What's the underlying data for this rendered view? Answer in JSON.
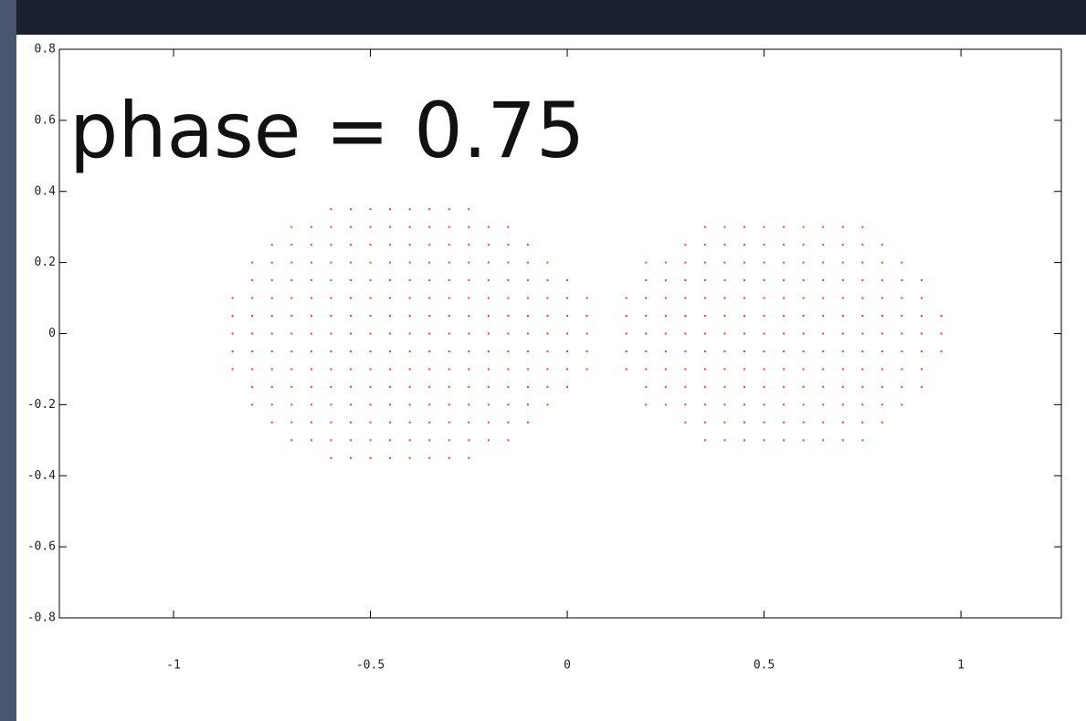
{
  "chart_data": {
    "type": "scatter",
    "annotation": "phase = 0.75",
    "xlim": [
      -1.29,
      1.255
    ],
    "ylim": [
      -0.8,
      0.8
    ],
    "xticks": [
      -1,
      -0.5,
      0,
      0.5,
      1
    ],
    "yticks": [
      -0.8,
      -0.6,
      -0.4,
      -0.2,
      0,
      0.2,
      0.4,
      0.6,
      0.8
    ],
    "series": [
      {
        "color": "#e2452f",
        "x": [
          -0.85,
          -0.85,
          -0.85,
          -0.85,
          -0.85,
          -0.8,
          -0.8,
          -0.8,
          -0.8,
          -0.8,
          -0.8,
          -0.8,
          -0.8,
          -0.8,
          -0.75,
          -0.75,
          -0.75,
          -0.75,
          -0.75,
          -0.75,
          -0.75,
          -0.75,
          -0.75,
          -0.75,
          -0.75,
          -0.7,
          -0.7,
          -0.7,
          -0.7,
          -0.7,
          -0.7,
          -0.7,
          -0.7,
          -0.7,
          -0.7,
          -0.7,
          -0.7,
          -0.7,
          -0.65,
          -0.65,
          -0.65,
          -0.65,
          -0.65,
          -0.65,
          -0.65,
          -0.65,
          -0.65,
          -0.65,
          -0.65,
          -0.65,
          -0.65,
          -0.6,
          -0.6,
          -0.6,
          -0.6,
          -0.6,
          -0.6,
          -0.6,
          -0.6,
          -0.6,
          -0.6,
          -0.6,
          -0.6,
          -0.6,
          -0.6,
          -0.6,
          -0.55,
          -0.55,
          -0.55,
          -0.55,
          -0.55,
          -0.55,
          -0.55,
          -0.55,
          -0.55,
          -0.55,
          -0.55,
          -0.55,
          -0.55,
          -0.55,
          -0.55,
          -0.5,
          -0.5,
          -0.5,
          -0.5,
          -0.5,
          -0.5,
          -0.5,
          -0.5,
          -0.5,
          -0.5,
          -0.5,
          -0.5,
          -0.5,
          -0.5,
          -0.5,
          -0.45,
          -0.45,
          -0.45,
          -0.45,
          -0.45,
          -0.45,
          -0.45,
          -0.45,
          -0.45,
          -0.45,
          -0.45,
          -0.45,
          -0.45,
          -0.45,
          -0.45,
          -0.4,
          -0.4,
          -0.4,
          -0.4,
          -0.4,
          -0.4,
          -0.4,
          -0.4,
          -0.4,
          -0.4,
          -0.4,
          -0.4,
          -0.4,
          -0.4,
          -0.4,
          -0.35,
          -0.35,
          -0.35,
          -0.35,
          -0.35,
          -0.35,
          -0.35,
          -0.35,
          -0.35,
          -0.35,
          -0.35,
          -0.35,
          -0.35,
          -0.35,
          -0.35,
          -0.3,
          -0.3,
          -0.3,
          -0.3,
          -0.3,
          -0.3,
          -0.3,
          -0.3,
          -0.3,
          -0.3,
          -0.3,
          -0.3,
          -0.3,
          -0.3,
          -0.3,
          -0.25,
          -0.25,
          -0.25,
          -0.25,
          -0.25,
          -0.25,
          -0.25,
          -0.25,
          -0.25,
          -0.25,
          -0.25,
          -0.25,
          -0.25,
          -0.25,
          -0.25,
          -0.2,
          -0.2,
          -0.2,
          -0.2,
          -0.2,
          -0.2,
          -0.2,
          -0.2,
          -0.2,
          -0.2,
          -0.2,
          -0.2,
          -0.2,
          -0.15,
          -0.15,
          -0.15,
          -0.15,
          -0.15,
          -0.15,
          -0.15,
          -0.15,
          -0.15,
          -0.15,
          -0.15,
          -0.15,
          -0.15,
          -0.1,
          -0.1,
          -0.1,
          -0.1,
          -0.1,
          -0.1,
          -0.1,
          -0.1,
          -0.1,
          -0.1,
          -0.1,
          -0.05,
          -0.05,
          -0.05,
          -0.05,
          -0.05,
          -0.05,
          -0.05,
          -0.05,
          -0.05,
          0,
          0,
          0,
          0,
          0,
          0,
          0,
          0.05,
          0.05,
          0.05,
          0.05,
          0.05
        ],
        "y": [
          -0.1,
          -0.05,
          0,
          0.05,
          0.1,
          -0.2,
          -0.15,
          -0.1,
          -0.05,
          0,
          0.05,
          0.1,
          0.15,
          0.2,
          -0.25,
          -0.2,
          -0.15,
          -0.1,
          -0.05,
          0,
          0.05,
          0.1,
          0.15,
          0.2,
          0.25,
          -0.3,
          -0.25,
          -0.2,
          -0.15,
          -0.1,
          -0.05,
          0,
          0.05,
          0.1,
          0.15,
          0.2,
          0.25,
          0.3,
          -0.3,
          -0.25,
          -0.2,
          -0.15,
          -0.1,
          -0.05,
          0,
          0.05,
          0.1,
          0.15,
          0.2,
          0.25,
          0.3,
          -0.35,
          -0.3,
          -0.25,
          -0.2,
          -0.15,
          -0.1,
          -0.05,
          0,
          0.05,
          0.1,
          0.15,
          0.2,
          0.25,
          0.3,
          0.35,
          -0.35,
          -0.3,
          -0.25,
          -0.2,
          -0.15,
          -0.1,
          -0.05,
          0,
          0.05,
          0.1,
          0.15,
          0.2,
          0.25,
          0.3,
          0.35,
          -0.35,
          -0.3,
          -0.25,
          -0.2,
          -0.15,
          -0.1,
          -0.05,
          0,
          0.05,
          0.1,
          0.15,
          0.2,
          0.25,
          0.3,
          0.35,
          -0.35,
          -0.3,
          -0.25,
          -0.2,
          -0.15,
          -0.1,
          -0.05,
          0,
          0.05,
          0.1,
          0.15,
          0.2,
          0.25,
          0.3,
          0.35,
          -0.35,
          -0.3,
          -0.25,
          -0.2,
          -0.15,
          -0.1,
          -0.05,
          0,
          0.05,
          0.1,
          0.15,
          0.2,
          0.25,
          0.3,
          0.35,
          -0.35,
          -0.3,
          -0.25,
          -0.2,
          -0.15,
          -0.1,
          -0.05,
          0,
          0.05,
          0.1,
          0.15,
          0.2,
          0.25,
          0.3,
          0.35,
          -0.35,
          -0.3,
          -0.25,
          -0.2,
          -0.15,
          -0.1,
          -0.05,
          0,
          0.05,
          0.1,
          0.15,
          0.2,
          0.25,
          0.3,
          0.35,
          -0.35,
          -0.3,
          -0.25,
          -0.2,
          -0.15,
          -0.1,
          -0.05,
          0,
          0.05,
          0.1,
          0.15,
          0.2,
          0.25,
          0.3,
          0.35,
          -0.3,
          -0.25,
          -0.2,
          -0.15,
          -0.1,
          -0.05,
          0,
          0.05,
          0.1,
          0.15,
          0.2,
          0.25,
          0.3,
          -0.3,
          -0.25,
          -0.2,
          -0.15,
          -0.1,
          -0.05,
          0,
          0.05,
          0.1,
          0.15,
          0.2,
          0.25,
          0.3,
          -0.25,
          -0.2,
          -0.15,
          -0.1,
          -0.05,
          0,
          0.05,
          0.1,
          0.15,
          0.2,
          0.25,
          -0.2,
          -0.15,
          -0.1,
          -0.05,
          0,
          0.05,
          0.1,
          0.15,
          0.2,
          -0.15,
          -0.1,
          -0.05,
          0,
          0.05,
          0.1,
          0.15,
          -0.1,
          -0.05,
          0,
          0.05,
          0.1
        ]
      },
      {
        "color": "#e2452f",
        "x": [
          0.15,
          0.15,
          0.15,
          0.15,
          0.15,
          0.2,
          0.2,
          0.2,
          0.2,
          0.2,
          0.2,
          0.2,
          0.2,
          0.2,
          0.25,
          0.25,
          0.25,
          0.25,
          0.25,
          0.25,
          0.25,
          0.25,
          0.25,
          0.3,
          0.3,
          0.3,
          0.3,
          0.3,
          0.3,
          0.3,
          0.3,
          0.3,
          0.3,
          0.3,
          0.35,
          0.35,
          0.35,
          0.35,
          0.35,
          0.35,
          0.35,
          0.35,
          0.35,
          0.35,
          0.35,
          0.35,
          0.35,
          0.4,
          0.4,
          0.4,
          0.4,
          0.4,
          0.4,
          0.4,
          0.4,
          0.4,
          0.4,
          0.4,
          0.4,
          0.4,
          0.45,
          0.45,
          0.45,
          0.45,
          0.45,
          0.45,
          0.45,
          0.45,
          0.45,
          0.45,
          0.45,
          0.45,
          0.45,
          0.5,
          0.5,
          0.5,
          0.5,
          0.5,
          0.5,
          0.5,
          0.5,
          0.5,
          0.5,
          0.5,
          0.5,
          0.5,
          0.55,
          0.55,
          0.55,
          0.55,
          0.55,
          0.55,
          0.55,
          0.55,
          0.55,
          0.55,
          0.55,
          0.55,
          0.55,
          0.6,
          0.6,
          0.6,
          0.6,
          0.6,
          0.6,
          0.6,
          0.6,
          0.6,
          0.6,
          0.6,
          0.6,
          0.6,
          0.65,
          0.65,
          0.65,
          0.65,
          0.65,
          0.65,
          0.65,
          0.65,
          0.65,
          0.65,
          0.65,
          0.65,
          0.65,
          0.7,
          0.7,
          0.7,
          0.7,
          0.7,
          0.7,
          0.7,
          0.7,
          0.7,
          0.7,
          0.7,
          0.7,
          0.7,
          0.75,
          0.75,
          0.75,
          0.75,
          0.75,
          0.75,
          0.75,
          0.75,
          0.75,
          0.75,
          0.75,
          0.75,
          0.75,
          0.8,
          0.8,
          0.8,
          0.8,
          0.8,
          0.8,
          0.8,
          0.8,
          0.8,
          0.8,
          0.8,
          0.85,
          0.85,
          0.85,
          0.85,
          0.85,
          0.85,
          0.85,
          0.85,
          0.85,
          0.9,
          0.9,
          0.9,
          0.9,
          0.9,
          0.9,
          0.9,
          0.95,
          0.95,
          0.95
        ],
        "y": [
          -0.1,
          -0.05,
          0,
          0.05,
          0.1,
          -0.2,
          -0.15,
          -0.1,
          -0.05,
          0,
          0.05,
          0.1,
          0.15,
          0.2,
          -0.2,
          -0.15,
          -0.1,
          -0.05,
          0,
          0.05,
          0.1,
          0.15,
          0.2,
          -0.25,
          -0.2,
          -0.15,
          -0.1,
          -0.05,
          0,
          0.05,
          0.1,
          0.15,
          0.2,
          0.25,
          -0.3,
          -0.25,
          -0.2,
          -0.15,
          -0.1,
          -0.05,
          0,
          0.05,
          0.1,
          0.15,
          0.2,
          0.25,
          0.3,
          -0.3,
          -0.25,
          -0.2,
          -0.15,
          -0.1,
          -0.05,
          0,
          0.05,
          0.1,
          0.15,
          0.2,
          0.25,
          0.3,
          -0.3,
          -0.25,
          -0.2,
          -0.15,
          -0.1,
          -0.05,
          0,
          0.05,
          0.1,
          0.15,
          0.2,
          0.25,
          0.3,
          -0.3,
          -0.25,
          -0.2,
          -0.15,
          -0.1,
          -0.05,
          0,
          0.05,
          0.1,
          0.15,
          0.2,
          0.25,
          0.3,
          -0.3,
          -0.25,
          -0.2,
          -0.15,
          -0.1,
          -0.05,
          0,
          0.05,
          0.1,
          0.15,
          0.2,
          0.25,
          0.3,
          -0.3,
          -0.25,
          -0.2,
          -0.15,
          -0.1,
          -0.05,
          0,
          0.05,
          0.1,
          0.15,
          0.2,
          0.25,
          0.3,
          -0.3,
          -0.25,
          -0.2,
          -0.15,
          -0.1,
          -0.05,
          0,
          0.05,
          0.1,
          0.15,
          0.2,
          0.25,
          0.3,
          -0.3,
          -0.25,
          -0.2,
          -0.15,
          -0.1,
          -0.05,
          0,
          0.05,
          0.1,
          0.15,
          0.2,
          0.25,
          0.3,
          -0.3,
          -0.25,
          -0.2,
          -0.15,
          -0.1,
          -0.05,
          0,
          0.05,
          0.1,
          0.15,
          0.2,
          0.25,
          0.3,
          -0.25,
          -0.2,
          -0.15,
          -0.1,
          -0.05,
          0,
          0.05,
          0.1,
          0.15,
          0.2,
          0.25,
          -0.2,
          -0.15,
          -0.1,
          -0.05,
          0,
          0.05,
          0.1,
          0.15,
          0.2,
          -0.15,
          -0.1,
          -0.05,
          0,
          0.05,
          0.1,
          0.15,
          -0.05,
          0,
          0.05
        ]
      }
    ]
  }
}
